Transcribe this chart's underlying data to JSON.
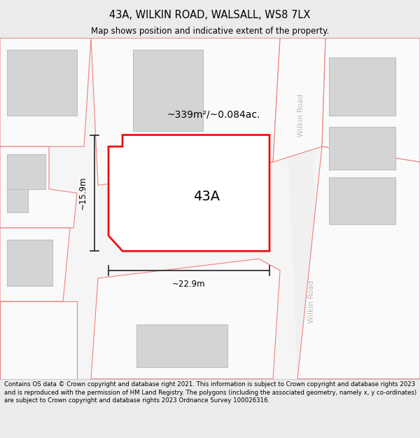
{
  "title_line1": "43A, WILKIN ROAD, WALSALL, WS8 7LX",
  "title_line2": "Map shows position and indicative extent of the property.",
  "area_label": "~339m²/~0.084ac.",
  "label_43A": "43A",
  "dim_width": "~22.9m",
  "dim_height": "~15.9m",
  "road_label_top": "Wilkin Road",
  "road_label_bot": "Wilkin Road",
  "footer": "Contains OS data © Crown copyright and database right 2021. This information is subject to Crown copyright and database rights 2023 and is reproduced with the permission of HM Land Registry. The polygons (including the associated geometry, namely x, y co-ordinates) are subject to Crown copyright and database rights 2023 Ordnance Survey 100026316.",
  "bg_color": "#ebebeb",
  "map_bg": "#f5f5f5",
  "red": "#ee1111",
  "pink_edge": "#f08080",
  "plot_fill": "#ffffff",
  "neighbor_fill": "#f8f8f8",
  "building_fill": "#d4d4d4",
  "building_edge": "#c0c0c0",
  "road_stripe": "#f0f0f0",
  "road_label_color": "#bbbbbb",
  "dim_color": "#222222",
  "title_fs": 10.5,
  "subtitle_fs": 8.5,
  "label_fs": 14,
  "area_fs": 10,
  "dim_fs": 8.5,
  "footer_fs": 6.2
}
